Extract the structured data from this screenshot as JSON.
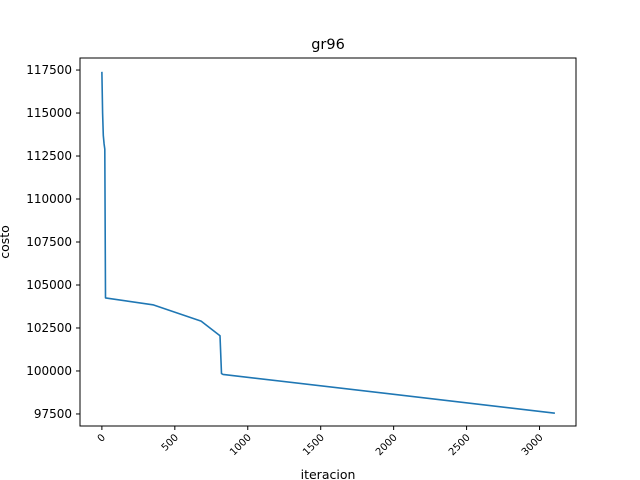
{
  "chart_data": {
    "type": "line",
    "title": "gr96",
    "xlabel": "iteracion",
    "ylabel": "costo",
    "xlim": [
      -150,
      3250
    ],
    "ylim": [
      96800,
      118200
    ],
    "x_ticks": [
      0,
      500,
      1000,
      1500,
      2000,
      2500,
      3000
    ],
    "y_ticks": [
      97500,
      100000,
      102500,
      105000,
      107500,
      110000,
      112500,
      115000,
      117500
    ],
    "grid": false,
    "series": [
      {
        "color": "#1f77b4",
        "x": [
          0,
          5,
          10,
          15,
          20,
          25,
          350,
          680,
          810,
          820,
          830,
          3100
        ],
        "y": [
          117350,
          115000,
          113700,
          113200,
          112900,
          104250,
          103850,
          102900,
          102050,
          99850,
          99800,
          97550
        ]
      }
    ]
  }
}
